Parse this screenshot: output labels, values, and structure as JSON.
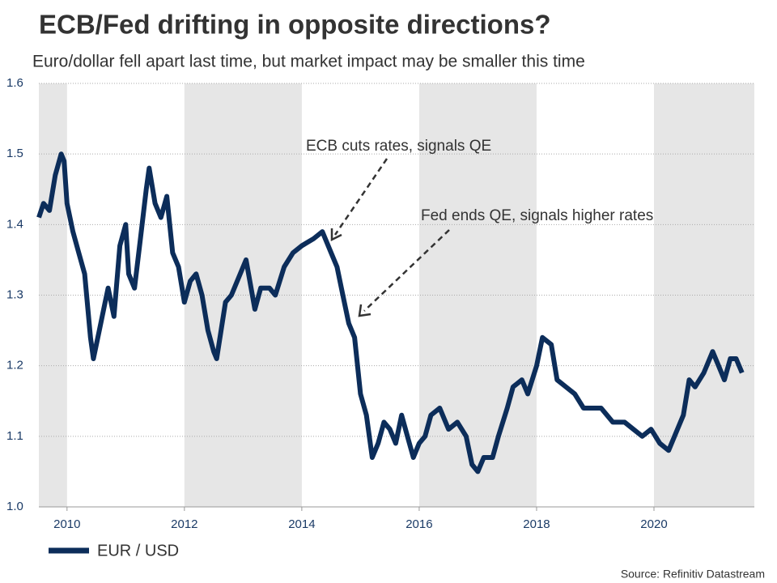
{
  "chart_data": {
    "type": "line",
    "title": "ECB/Fed drifting in opposite directions?",
    "subtitle": "Euro/dollar fell apart last time, but market impact may be smaller this time",
    "source": "Source: Refinitiv Datastream",
    "annotations": [
      "ECB cuts rates, signals QE",
      "Fed ends QE, signals higher rates"
    ],
    "x": [
      2009.52,
      2009.6,
      2009.7,
      2009.8,
      2009.9,
      2009.95,
      2010.0,
      2010.1,
      2010.2,
      2010.3,
      2010.4,
      2010.45,
      2010.55,
      2010.65,
      2010.7,
      2010.8,
      2010.9,
      2011.0,
      2011.05,
      2011.15,
      2011.25,
      2011.35,
      2011.4,
      2011.5,
      2011.6,
      2011.7,
      2011.8,
      2011.9,
      2012.0,
      2012.1,
      2012.2,
      2012.3,
      2012.4,
      2012.5,
      2012.55,
      2012.7,
      2012.8,
      2012.9,
      2013.05,
      2013.2,
      2013.3,
      2013.45,
      2013.55,
      2013.7,
      2013.85,
      2014.0,
      2014.2,
      2014.35,
      2014.5,
      2014.6,
      2014.7,
      2014.8,
      2014.9,
      2015.0,
      2015.1,
      2015.2,
      2015.3,
      2015.4,
      2015.5,
      2015.6,
      2015.7,
      2015.8,
      2015.9,
      2016.0,
      2016.1,
      2016.2,
      2016.35,
      2016.5,
      2016.65,
      2016.8,
      2016.9,
      2017.0,
      2017.1,
      2017.25,
      2017.35,
      2017.5,
      2017.6,
      2017.75,
      2017.85,
      2018.0,
      2018.1,
      2018.25,
      2018.35,
      2018.5,
      2018.65,
      2018.8,
      2018.95,
      2019.1,
      2019.3,
      2019.5,
      2019.65,
      2019.8,
      2019.95,
      2020.1,
      2020.25,
      2020.4,
      2020.5,
      2020.6,
      2020.7,
      2020.85,
      2021.0,
      2021.1,
      2021.2,
      2021.3,
      2021.4,
      2021.5
    ],
    "series": [
      {
        "name": "EUR / USD",
        "color": "#0c2d5a",
        "values": [
          1.41,
          1.43,
          1.42,
          1.47,
          1.5,
          1.49,
          1.43,
          1.39,
          1.36,
          1.33,
          1.24,
          1.21,
          1.25,
          1.29,
          1.31,
          1.27,
          1.37,
          1.4,
          1.33,
          1.31,
          1.38,
          1.45,
          1.48,
          1.43,
          1.41,
          1.44,
          1.36,
          1.34,
          1.29,
          1.32,
          1.33,
          1.3,
          1.25,
          1.22,
          1.21,
          1.29,
          1.3,
          1.32,
          1.35,
          1.28,
          1.31,
          1.31,
          1.3,
          1.34,
          1.36,
          1.37,
          1.38,
          1.39,
          1.36,
          1.34,
          1.3,
          1.26,
          1.24,
          1.16,
          1.13,
          1.07,
          1.09,
          1.12,
          1.11,
          1.09,
          1.13,
          1.1,
          1.07,
          1.09,
          1.1,
          1.13,
          1.14,
          1.11,
          1.12,
          1.1,
          1.06,
          1.05,
          1.07,
          1.07,
          1.1,
          1.14,
          1.17,
          1.18,
          1.16,
          1.2,
          1.24,
          1.23,
          1.18,
          1.17,
          1.16,
          1.14,
          1.14,
          1.14,
          1.12,
          1.12,
          1.11,
          1.1,
          1.11,
          1.09,
          1.08,
          1.11,
          1.13,
          1.18,
          1.17,
          1.19,
          1.22,
          1.2,
          1.18,
          1.21,
          1.21,
          1.19
        ]
      }
    ],
    "xlim": [
      2009.52,
      2021.71
    ],
    "xticks": [
      2010,
      2012,
      2014,
      2016,
      2018,
      2020
    ],
    "ylim": [
      1,
      1.6
    ],
    "yticks": [
      {
        "value": 1,
        "label": "1.0"
      },
      1.1,
      1.2,
      1.3,
      1.4,
      1.5,
      1.6
    ],
    "grid": true,
    "shade_color": "#e6e6e6"
  }
}
